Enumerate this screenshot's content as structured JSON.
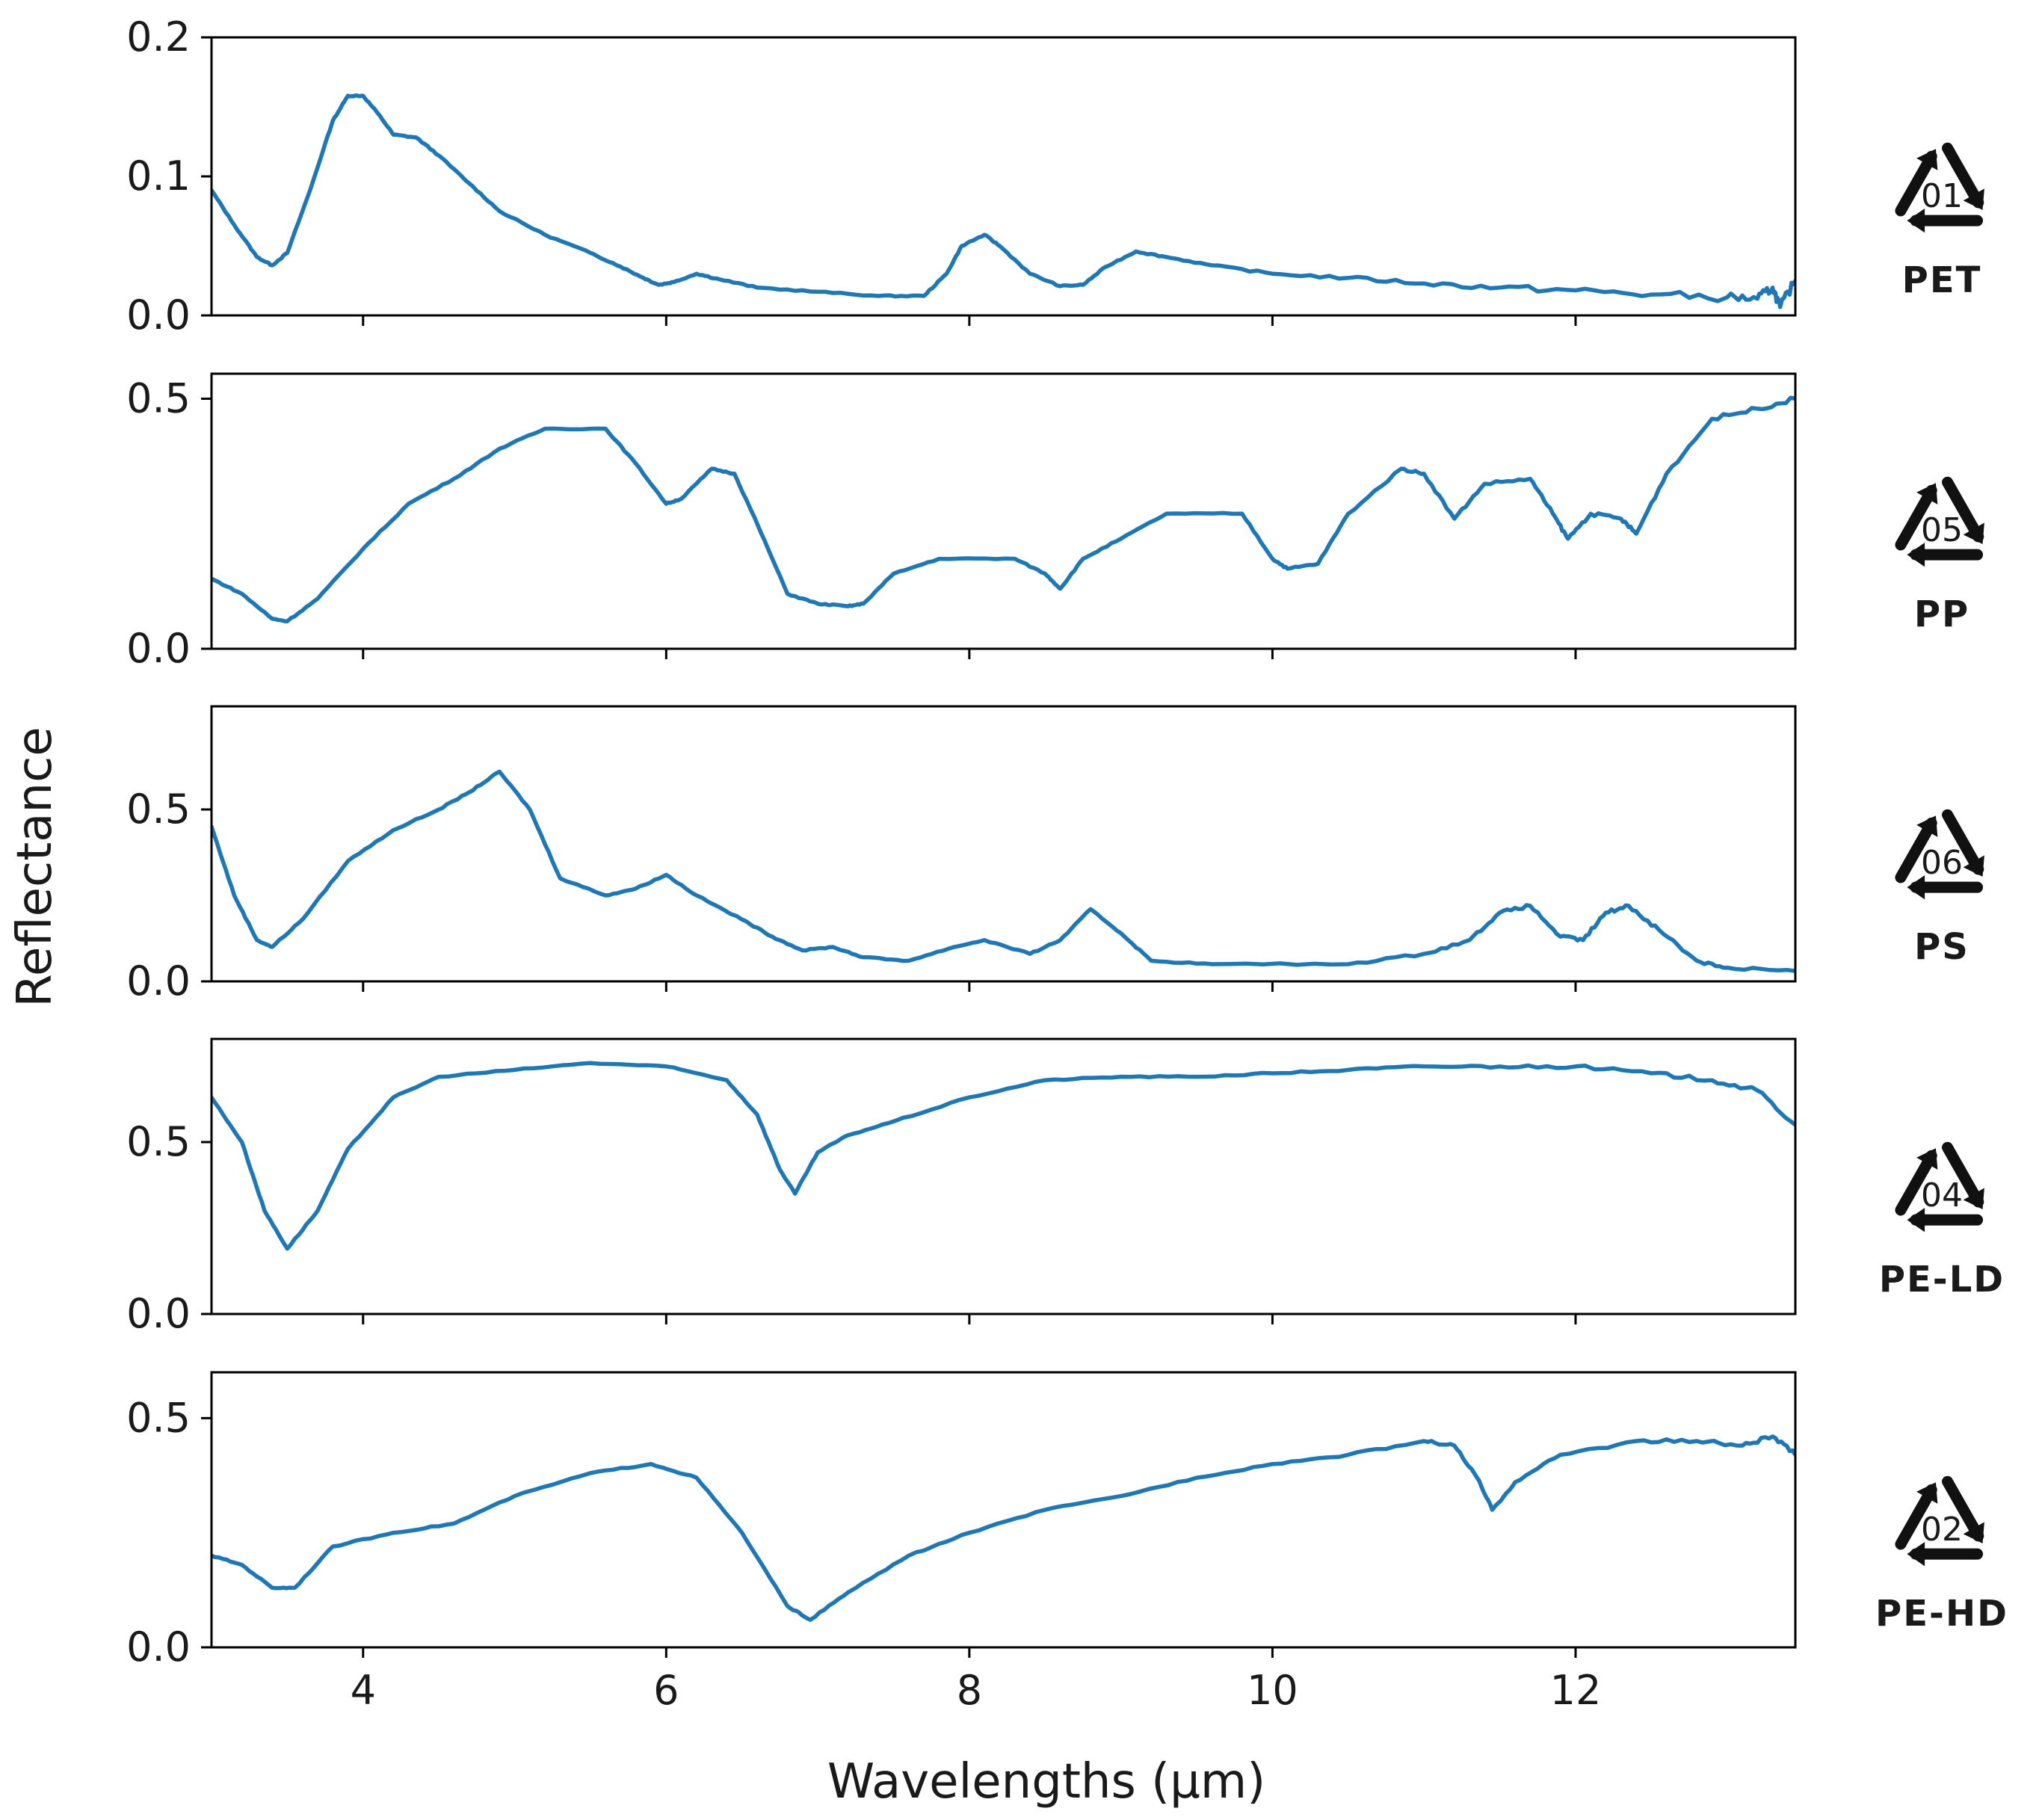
{
  "x_axis_label": "Wavelengths (µm)",
  "y_axis_label": "Reflectance",
  "colors": {
    "series": "#1f77b4",
    "frame": "#000000"
  },
  "chart_data": {
    "type": "line",
    "xlabel": "Wavelengths (µm)",
    "ylabel": "Reflectance",
    "xlim": [
      3.0,
      13.45
    ],
    "x_ticks": [
      4,
      6,
      8,
      10,
      12
    ],
    "x_tick_labels": [
      "4",
      "6",
      "8",
      "10",
      "12"
    ],
    "panels": [
      {
        "name": "PET",
        "code": "01",
        "ylim": [
          0.0,
          0.2
        ],
        "y_ticks": [
          0.0,
          0.1,
          0.2
        ],
        "y_tick_labels": [
          "0.0",
          "0.1",
          "0.2"
        ],
        "points": [
          [
            3.0,
            0.09
          ],
          [
            3.15,
            0.065
          ],
          [
            3.3,
            0.042
          ],
          [
            3.4,
            0.036
          ],
          [
            3.5,
            0.045
          ],
          [
            3.65,
            0.09
          ],
          [
            3.8,
            0.14
          ],
          [
            3.9,
            0.158
          ],
          [
            4.0,
            0.158
          ],
          [
            4.1,
            0.145
          ],
          [
            4.2,
            0.13
          ],
          [
            4.35,
            0.128
          ],
          [
            4.5,
            0.115
          ],
          [
            4.7,
            0.095
          ],
          [
            4.9,
            0.075
          ],
          [
            5.2,
            0.058
          ],
          [
            5.5,
            0.045
          ],
          [
            5.7,
            0.035
          ],
          [
            5.85,
            0.027
          ],
          [
            5.95,
            0.022
          ],
          [
            6.05,
            0.024
          ],
          [
            6.2,
            0.03
          ],
          [
            6.35,
            0.026
          ],
          [
            6.6,
            0.02
          ],
          [
            7.0,
            0.017
          ],
          [
            7.4,
            0.014
          ],
          [
            7.7,
            0.014
          ],
          [
            7.85,
            0.03
          ],
          [
            7.95,
            0.05
          ],
          [
            8.1,
            0.058
          ],
          [
            8.2,
            0.05
          ],
          [
            8.4,
            0.03
          ],
          [
            8.6,
            0.021
          ],
          [
            8.75,
            0.022
          ],
          [
            8.9,
            0.035
          ],
          [
            9.1,
            0.046
          ],
          [
            9.3,
            0.042
          ],
          [
            9.6,
            0.036
          ],
          [
            10.0,
            0.03
          ],
          [
            10.5,
            0.027
          ],
          [
            11.0,
            0.023
          ],
          [
            11.5,
            0.02
          ],
          [
            12.0,
            0.018
          ],
          [
            12.5,
            0.015
          ],
          [
            13.0,
            0.013
          ],
          [
            13.2,
            0.012
          ],
          [
            13.3,
            0.02
          ],
          [
            13.35,
            0.006
          ],
          [
            13.45,
            0.025
          ]
        ]
      },
      {
        "name": "PP",
        "code": "05",
        "ylim": [
          0.0,
          0.55
        ],
        "y_ticks": [
          0.0,
          0.5
        ],
        "y_tick_labels": [
          "0.0",
          "0.5"
        ],
        "points": [
          [
            3.0,
            0.14
          ],
          [
            3.2,
            0.11
          ],
          [
            3.4,
            0.06
          ],
          [
            3.5,
            0.055
          ],
          [
            3.7,
            0.1
          ],
          [
            4.0,
            0.2
          ],
          [
            4.3,
            0.29
          ],
          [
            4.6,
            0.34
          ],
          [
            4.9,
            0.4
          ],
          [
            5.2,
            0.44
          ],
          [
            5.6,
            0.44
          ],
          [
            5.8,
            0.37
          ],
          [
            6.0,
            0.29
          ],
          [
            6.1,
            0.3
          ],
          [
            6.3,
            0.36
          ],
          [
            6.45,
            0.35
          ],
          [
            6.6,
            0.25
          ],
          [
            6.8,
            0.11
          ],
          [
            7.0,
            0.09
          ],
          [
            7.2,
            0.085
          ],
          [
            7.3,
            0.09
          ],
          [
            7.5,
            0.15
          ],
          [
            7.8,
            0.18
          ],
          [
            8.3,
            0.18
          ],
          [
            8.5,
            0.15
          ],
          [
            8.6,
            0.12
          ],
          [
            8.75,
            0.18
          ],
          [
            9.0,
            0.22
          ],
          [
            9.3,
            0.27
          ],
          [
            9.8,
            0.27
          ],
          [
            10.0,
            0.18
          ],
          [
            10.1,
            0.16
          ],
          [
            10.3,
            0.17
          ],
          [
            10.5,
            0.27
          ],
          [
            10.85,
            0.36
          ],
          [
            11.0,
            0.35
          ],
          [
            11.2,
            0.26
          ],
          [
            11.4,
            0.33
          ],
          [
            11.7,
            0.34
          ],
          [
            11.85,
            0.27
          ],
          [
            11.95,
            0.22
          ],
          [
            12.1,
            0.27
          ],
          [
            12.3,
            0.26
          ],
          [
            12.4,
            0.23
          ],
          [
            12.6,
            0.35
          ],
          [
            12.9,
            0.46
          ],
          [
            13.2,
            0.48
          ],
          [
            13.45,
            0.5
          ]
        ]
      },
      {
        "name": "PS",
        "code": "06",
        "ylim": [
          0.0,
          0.8
        ],
        "y_ticks": [
          0.0,
          0.5
        ],
        "y_tick_labels": [
          "0.0",
          "0.5"
        ],
        "points": [
          [
            3.0,
            0.45
          ],
          [
            3.15,
            0.25
          ],
          [
            3.3,
            0.12
          ],
          [
            3.4,
            0.1
          ],
          [
            3.6,
            0.18
          ],
          [
            3.9,
            0.35
          ],
          [
            4.2,
            0.44
          ],
          [
            4.5,
            0.5
          ],
          [
            4.7,
            0.55
          ],
          [
            4.9,
            0.61
          ],
          [
            5.1,
            0.5
          ],
          [
            5.3,
            0.3
          ],
          [
            5.6,
            0.25
          ],
          [
            5.8,
            0.27
          ],
          [
            6.0,
            0.31
          ],
          [
            6.2,
            0.25
          ],
          [
            6.5,
            0.18
          ],
          [
            6.7,
            0.13
          ],
          [
            6.9,
            0.09
          ],
          [
            7.1,
            0.1
          ],
          [
            7.3,
            0.07
          ],
          [
            7.6,
            0.06
          ],
          [
            7.9,
            0.1
          ],
          [
            8.1,
            0.12
          ],
          [
            8.4,
            0.08
          ],
          [
            8.6,
            0.12
          ],
          [
            8.8,
            0.21
          ],
          [
            9.0,
            0.14
          ],
          [
            9.2,
            0.06
          ],
          [
            9.6,
            0.05
          ],
          [
            10.5,
            0.05
          ],
          [
            11.0,
            0.08
          ],
          [
            11.3,
            0.12
          ],
          [
            11.5,
            0.2
          ],
          [
            11.7,
            0.22
          ],
          [
            11.9,
            0.13
          ],
          [
            12.05,
            0.12
          ],
          [
            12.2,
            0.2
          ],
          [
            12.35,
            0.22
          ],
          [
            12.55,
            0.15
          ],
          [
            12.8,
            0.06
          ],
          [
            13.0,
            0.04
          ],
          [
            13.45,
            0.03
          ]
        ]
      },
      {
        "name": "PE-LD",
        "code": "04",
        "ylim": [
          0.0,
          0.8
        ],
        "y_ticks": [
          0.0,
          0.5
        ],
        "y_tick_labels": [
          "0.0",
          "0.5"
        ],
        "points": [
          [
            3.0,
            0.63
          ],
          [
            3.2,
            0.5
          ],
          [
            3.35,
            0.3
          ],
          [
            3.5,
            0.19
          ],
          [
            3.7,
            0.3
          ],
          [
            3.9,
            0.48
          ],
          [
            4.2,
            0.63
          ],
          [
            4.5,
            0.69
          ],
          [
            5.0,
            0.71
          ],
          [
            5.5,
            0.73
          ],
          [
            6.0,
            0.72
          ],
          [
            6.4,
            0.68
          ],
          [
            6.6,
            0.58
          ],
          [
            6.75,
            0.42
          ],
          [
            6.85,
            0.35
          ],
          [
            7.0,
            0.47
          ],
          [
            7.2,
            0.52
          ],
          [
            7.5,
            0.56
          ],
          [
            8.0,
            0.63
          ],
          [
            8.5,
            0.68
          ],
          [
            9.0,
            0.69
          ],
          [
            9.5,
            0.69
          ],
          [
            10.0,
            0.7
          ],
          [
            10.5,
            0.71
          ],
          [
            11.0,
            0.72
          ],
          [
            11.5,
            0.72
          ],
          [
            12.0,
            0.72
          ],
          [
            12.5,
            0.7
          ],
          [
            12.9,
            0.68
          ],
          [
            13.2,
            0.65
          ],
          [
            13.45,
            0.55
          ]
        ]
      },
      {
        "name": "PE-HD",
        "code": "02",
        "ylim": [
          0.0,
          0.6
        ],
        "y_ticks": [
          0.0,
          0.5
        ],
        "y_tick_labels": [
          "0.0",
          "0.5"
        ],
        "points": [
          [
            3.0,
            0.2
          ],
          [
            3.2,
            0.18
          ],
          [
            3.4,
            0.13
          ],
          [
            3.55,
            0.13
          ],
          [
            3.8,
            0.22
          ],
          [
            4.2,
            0.25
          ],
          [
            4.6,
            0.27
          ],
          [
            5.0,
            0.33
          ],
          [
            5.5,
            0.38
          ],
          [
            5.9,
            0.4
          ],
          [
            6.2,
            0.37
          ],
          [
            6.5,
            0.25
          ],
          [
            6.8,
            0.09
          ],
          [
            6.95,
            0.06
          ],
          [
            7.2,
            0.12
          ],
          [
            7.6,
            0.2
          ],
          [
            8.0,
            0.25
          ],
          [
            8.5,
            0.3
          ],
          [
            9.0,
            0.33
          ],
          [
            9.5,
            0.37
          ],
          [
            10.0,
            0.4
          ],
          [
            10.5,
            0.42
          ],
          [
            11.0,
            0.45
          ],
          [
            11.2,
            0.44
          ],
          [
            11.35,
            0.37
          ],
          [
            11.45,
            0.3
          ],
          [
            11.6,
            0.36
          ],
          [
            11.9,
            0.42
          ],
          [
            12.4,
            0.45
          ],
          [
            12.8,
            0.45
          ],
          [
            13.1,
            0.44
          ],
          [
            13.3,
            0.46
          ],
          [
            13.45,
            0.42
          ]
        ]
      }
    ]
  }
}
